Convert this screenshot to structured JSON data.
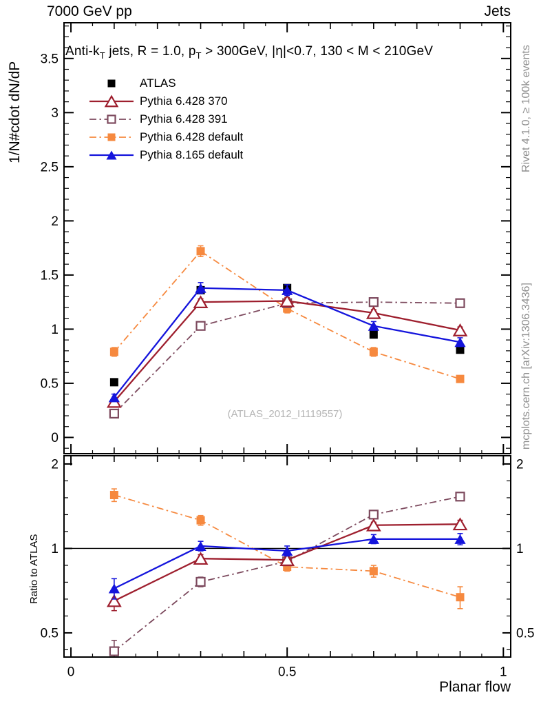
{
  "header": {
    "title_left": "7000 GeV pp",
    "title_right": "Jets"
  },
  "annotation": "Anti-k_T jets, R = 1.0, p_T > 300GeV, |η|<0.7, 130 < M < 210GeV",
  "watermark": "(ATLAS_2012_I1119557)",
  "side_notes": {
    "top": "Rivet 4.1.0, ≥ 100k events",
    "bottom": "mcplots.cern.ch [arXiv:1306.3436]"
  },
  "chart_data": {
    "type": "line",
    "xlabel": "Planar flow",
    "x": [
      0.1,
      0.3,
      0.5,
      0.7,
      0.9
    ],
    "xlim": [
      -0.016,
      1.017
    ],
    "x_ticks": {
      "labeled": [
        0,
        0.5,
        1
      ],
      "labels": [
        "0",
        "0.5",
        "1"
      ]
    },
    "main_panel": {
      "ylabel": "1/N#cdot dN/dP",
      "scale": "linear",
      "ylim": [
        -0.15,
        3.83
      ],
      "yticks": [
        0,
        0.5,
        1,
        1.5,
        2,
        2.5,
        3,
        3.5
      ],
      "ytick_labels": [
        "0",
        "0.5",
        "1",
        "1.5",
        "2",
        "2.5",
        "3",
        "3.5"
      ]
    },
    "ratio_panel": {
      "ylabel": "Ratio to ATLAS",
      "scale": "log",
      "ylim": [
        0.41,
        2.14
      ],
      "yticks": [
        0.5,
        1,
        2
      ],
      "ytick_labels": [
        "0.5",
        "1",
        "2"
      ],
      "reference_line": 1
    },
    "series": [
      {
        "name": "ATLAS",
        "color": "#000000",
        "marker": "square-filled",
        "line": "none",
        "main_values": [
          0.51,
          1.36,
          1.38,
          0.95,
          0.81
        ],
        "main_errors": [
          0.02,
          0.02,
          0.02,
          0.02,
          0.02
        ]
      },
      {
        "name": "Pythia 6.428 370",
        "color": "#9e1f2e",
        "marker": "triangle-open",
        "line": "solid",
        "main_values": [
          0.33,
          1.25,
          1.26,
          1.15,
          0.99
        ],
        "main_errors": [
          0.02,
          0.03,
          0.03,
          0.03,
          0.03
        ],
        "ratio_values": [
          0.65,
          0.92,
          0.91,
          1.21,
          1.22
        ],
        "ratio_errors": [
          0.05,
          0.03,
          0.03,
          0.03,
          0.04
        ]
      },
      {
        "name": "Pythia 6.428 391",
        "color": "#7d4a5e",
        "marker": "square-open",
        "line": "dashdot",
        "main_values": [
          0.22,
          1.03,
          1.24,
          1.25,
          1.24
        ],
        "main_errors": [
          0.02,
          0.03,
          0.03,
          0.03,
          0.03
        ],
        "ratio_values": [
          0.43,
          0.76,
          0.9,
          1.32,
          1.53
        ],
        "ratio_errors": [
          0.04,
          0.03,
          0.03,
          0.04,
          0.05
        ]
      },
      {
        "name": "Pythia 6.428 default",
        "color": "#f6893f",
        "marker": "square-filled",
        "line": "dashdot",
        "main_values": [
          0.79,
          1.72,
          1.19,
          0.79,
          0.54
        ],
        "main_errors": [
          0.04,
          0.05,
          0.04,
          0.04,
          0.03
        ],
        "ratio_values": [
          1.55,
          1.26,
          0.86,
          0.83,
          0.67
        ],
        "ratio_errors": [
          0.08,
          0.05,
          0.03,
          0.04,
          0.06
        ]
      },
      {
        "name": "Pythia 8.165 default",
        "color": "#1414dc",
        "marker": "triangle-filled",
        "line": "solid",
        "main_values": [
          0.37,
          1.38,
          1.36,
          1.03,
          0.88
        ],
        "main_errors": [
          0.03,
          0.05,
          0.05,
          0.04,
          0.04
        ],
        "ratio_values": [
          0.72,
          1.02,
          0.98,
          1.08,
          1.08
        ],
        "ratio_errors": [
          0.06,
          0.04,
          0.04,
          0.04,
          0.05
        ]
      }
    ]
  }
}
